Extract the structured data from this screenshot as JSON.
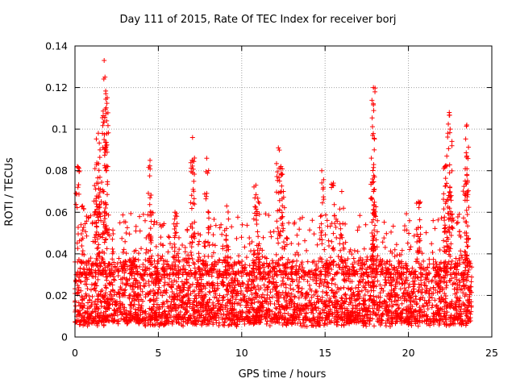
{
  "chart_data": {
    "type": "scatter",
    "title": "Day 111 of 2015, Rate Of TEC Index for receiver borj",
    "xlabel": "GPS time / hours",
    "ylabel": "ROTI / TECUs",
    "xlim": [
      0,
      25
    ],
    "ylim": [
      0,
      0.14
    ],
    "x_ticks": [
      0,
      5,
      10,
      15,
      20,
      25
    ],
    "x_tick_labels": [
      "0",
      "5",
      "10",
      "15",
      "20",
      "25"
    ],
    "y_ticks": [
      0,
      0.02,
      0.04,
      0.06,
      0.08,
      0.1,
      0.12,
      0.14
    ],
    "y_tick_labels": [
      "0",
      "0.02",
      "0.04",
      "0.06",
      "0.08",
      "0.1",
      "0.12",
      "0.14"
    ],
    "grid": true,
    "marker": "+",
    "color": "#ff0000",
    "data_x_range": [
      0,
      23.8
    ],
    "typical_range": [
      0.005,
      0.035
    ],
    "peaks": [
      {
        "x": 1.75,
        "y": 0.133
      },
      {
        "x": 1.8,
        "y": 0.125
      },
      {
        "x": 1.85,
        "y": 0.117
      },
      {
        "x": 1.9,
        "y": 0.104
      },
      {
        "x": 1.4,
        "y": 0.098
      },
      {
        "x": 1.5,
        "y": 0.09
      },
      {
        "x": 1.2,
        "y": 0.081
      },
      {
        "x": 1.3,
        "y": 0.074
      },
      {
        "x": 0.15,
        "y": 0.082
      },
      {
        "x": 0.45,
        "y": 0.063
      },
      {
        "x": 4.5,
        "y": 0.085
      },
      {
        "x": 4.5,
        "y": 0.067
      },
      {
        "x": 7.05,
        "y": 0.096
      },
      {
        "x": 7.05,
        "y": 0.085
      },
      {
        "x": 7.9,
        "y": 0.086
      },
      {
        "x": 12.2,
        "y": 0.091
      },
      {
        "x": 12.35,
        "y": 0.082
      },
      {
        "x": 12.5,
        "y": 0.07
      },
      {
        "x": 14.8,
        "y": 0.08
      },
      {
        "x": 15.5,
        "y": 0.074
      },
      {
        "x": 16.0,
        "y": 0.07
      },
      {
        "x": 17.9,
        "y": 0.12
      },
      {
        "x": 17.85,
        "y": 0.097
      },
      {
        "x": 17.95,
        "y": 0.09
      },
      {
        "x": 17.85,
        "y": 0.076
      },
      {
        "x": 22.45,
        "y": 0.108
      },
      {
        "x": 22.5,
        "y": 0.1
      },
      {
        "x": 22.3,
        "y": 0.087
      },
      {
        "x": 22.2,
        "y": 0.082
      },
      {
        "x": 23.5,
        "y": 0.102
      },
      {
        "x": 23.5,
        "y": 0.087
      },
      {
        "x": 23.4,
        "y": 0.075
      },
      {
        "x": 20.6,
        "y": 0.065
      },
      {
        "x": 10.85,
        "y": 0.073
      },
      {
        "x": 11.0,
        "y": 0.065
      },
      {
        "x": 9.1,
        "y": 0.063
      },
      {
        "x": 6.0,
        "y": 0.06
      }
    ]
  }
}
